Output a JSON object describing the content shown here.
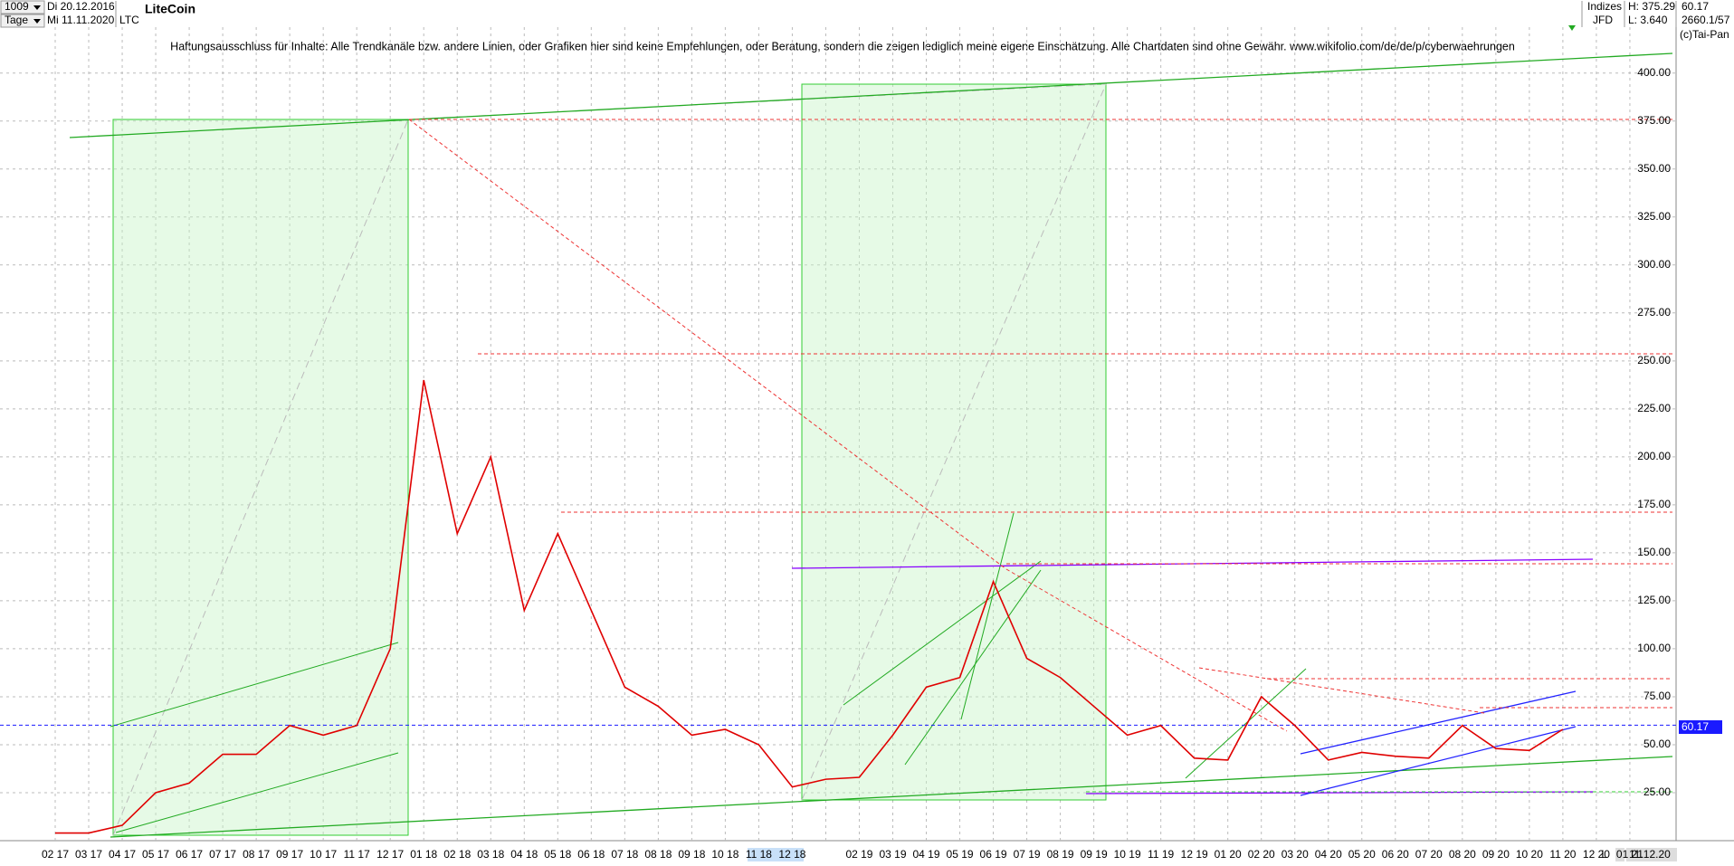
{
  "header": {
    "bars": "1009",
    "start_date": "Di 20.12.2016",
    "period": "Tage",
    "end_date": "Mi 11.11.2020",
    "symbol": "LTC",
    "market": "Indizes",
    "broker": "JFD",
    "high": "H: 375.29",
    "low": "L: 3.640",
    "counter": "2660.1/57",
    "copyright": "(c)Tai-Pan",
    "cursor_date": "11.12.20",
    "scale_mode": "L"
  },
  "chart_data": {
    "type": "line",
    "title": "LiteCoin",
    "subtitle": "Haftungsausschluss für Inhalte: Alle Trendkanäle bzw. andere Linien, oder Grafiken hier sind keine Empfehlungen, oder Beratung, sondern die zeigen lediglich meine eigene Einschätzung. Alle Chartdaten sind ohne Gewähr.  www.wikifolio.com/de/de/p/cyberwaehrungen",
    "categories": [
      "02 17",
      "03 17",
      "04 17",
      "05 17",
      "06 17",
      "07 17",
      "08 17",
      "09 17",
      "10 17",
      "11 17",
      "12 17",
      "01 18",
      "02 18",
      "03 18",
      "04 18",
      "05 18",
      "06 18",
      "07 18",
      "08 18",
      "09 18",
      "10 18",
      "11 18",
      "12 18",
      null,
      "02 19",
      "03 19",
      "04 19",
      "05 19",
      "06 19",
      "07 19",
      "08 19",
      "09 19",
      "10 19",
      "11 19",
      "12 19",
      "01 20",
      "02 20",
      "03 20",
      "04 20",
      "05 20",
      "06 20",
      "07 20",
      "08 20",
      "09 20",
      "10 20",
      "11 20",
      "12 20",
      "01 21"
    ],
    "series": [
      {
        "name": "LiteCoin",
        "color": "#e00000",
        "values": [
          4,
          4,
          8,
          25,
          30,
          45,
          45,
          60,
          55,
          60,
          100,
          240,
          160,
          200,
          120,
          160,
          120,
          80,
          70,
          55,
          58,
          50,
          28,
          32,
          33,
          55,
          80,
          85,
          135,
          95,
          85,
          70,
          55,
          60,
          43,
          42,
          75,
          60,
          42,
          46,
          44,
          43,
          60,
          48,
          47,
          58,
          null,
          null
        ]
      }
    ],
    "last_price": 60.17,
    "ylim": [
      0,
      425
    ],
    "yticks": [
      {
        "value": 25,
        "label": "25.00"
      },
      {
        "value": 50,
        "label": "50.00"
      },
      {
        "value": 75,
        "label": "75.00"
      },
      {
        "value": 100,
        "label": "100.00"
      },
      {
        "value": 125,
        "label": "125.00"
      },
      {
        "value": 150,
        "label": "150.00"
      },
      {
        "value": 175,
        "label": "175.00"
      },
      {
        "value": 200,
        "label": "200.00"
      },
      {
        "value": 225,
        "label": "225.00"
      },
      {
        "value": 250,
        "label": "250.00"
      },
      {
        "value": 275,
        "label": "275.00"
      },
      {
        "value": 300,
        "label": "300.00"
      },
      {
        "value": 325,
        "label": "325.00"
      },
      {
        "value": 350,
        "label": "350.00"
      },
      {
        "value": 375,
        "label": "375.00"
      },
      {
        "value": 400,
        "label": "400.00"
      }
    ],
    "grid": true
  }
}
